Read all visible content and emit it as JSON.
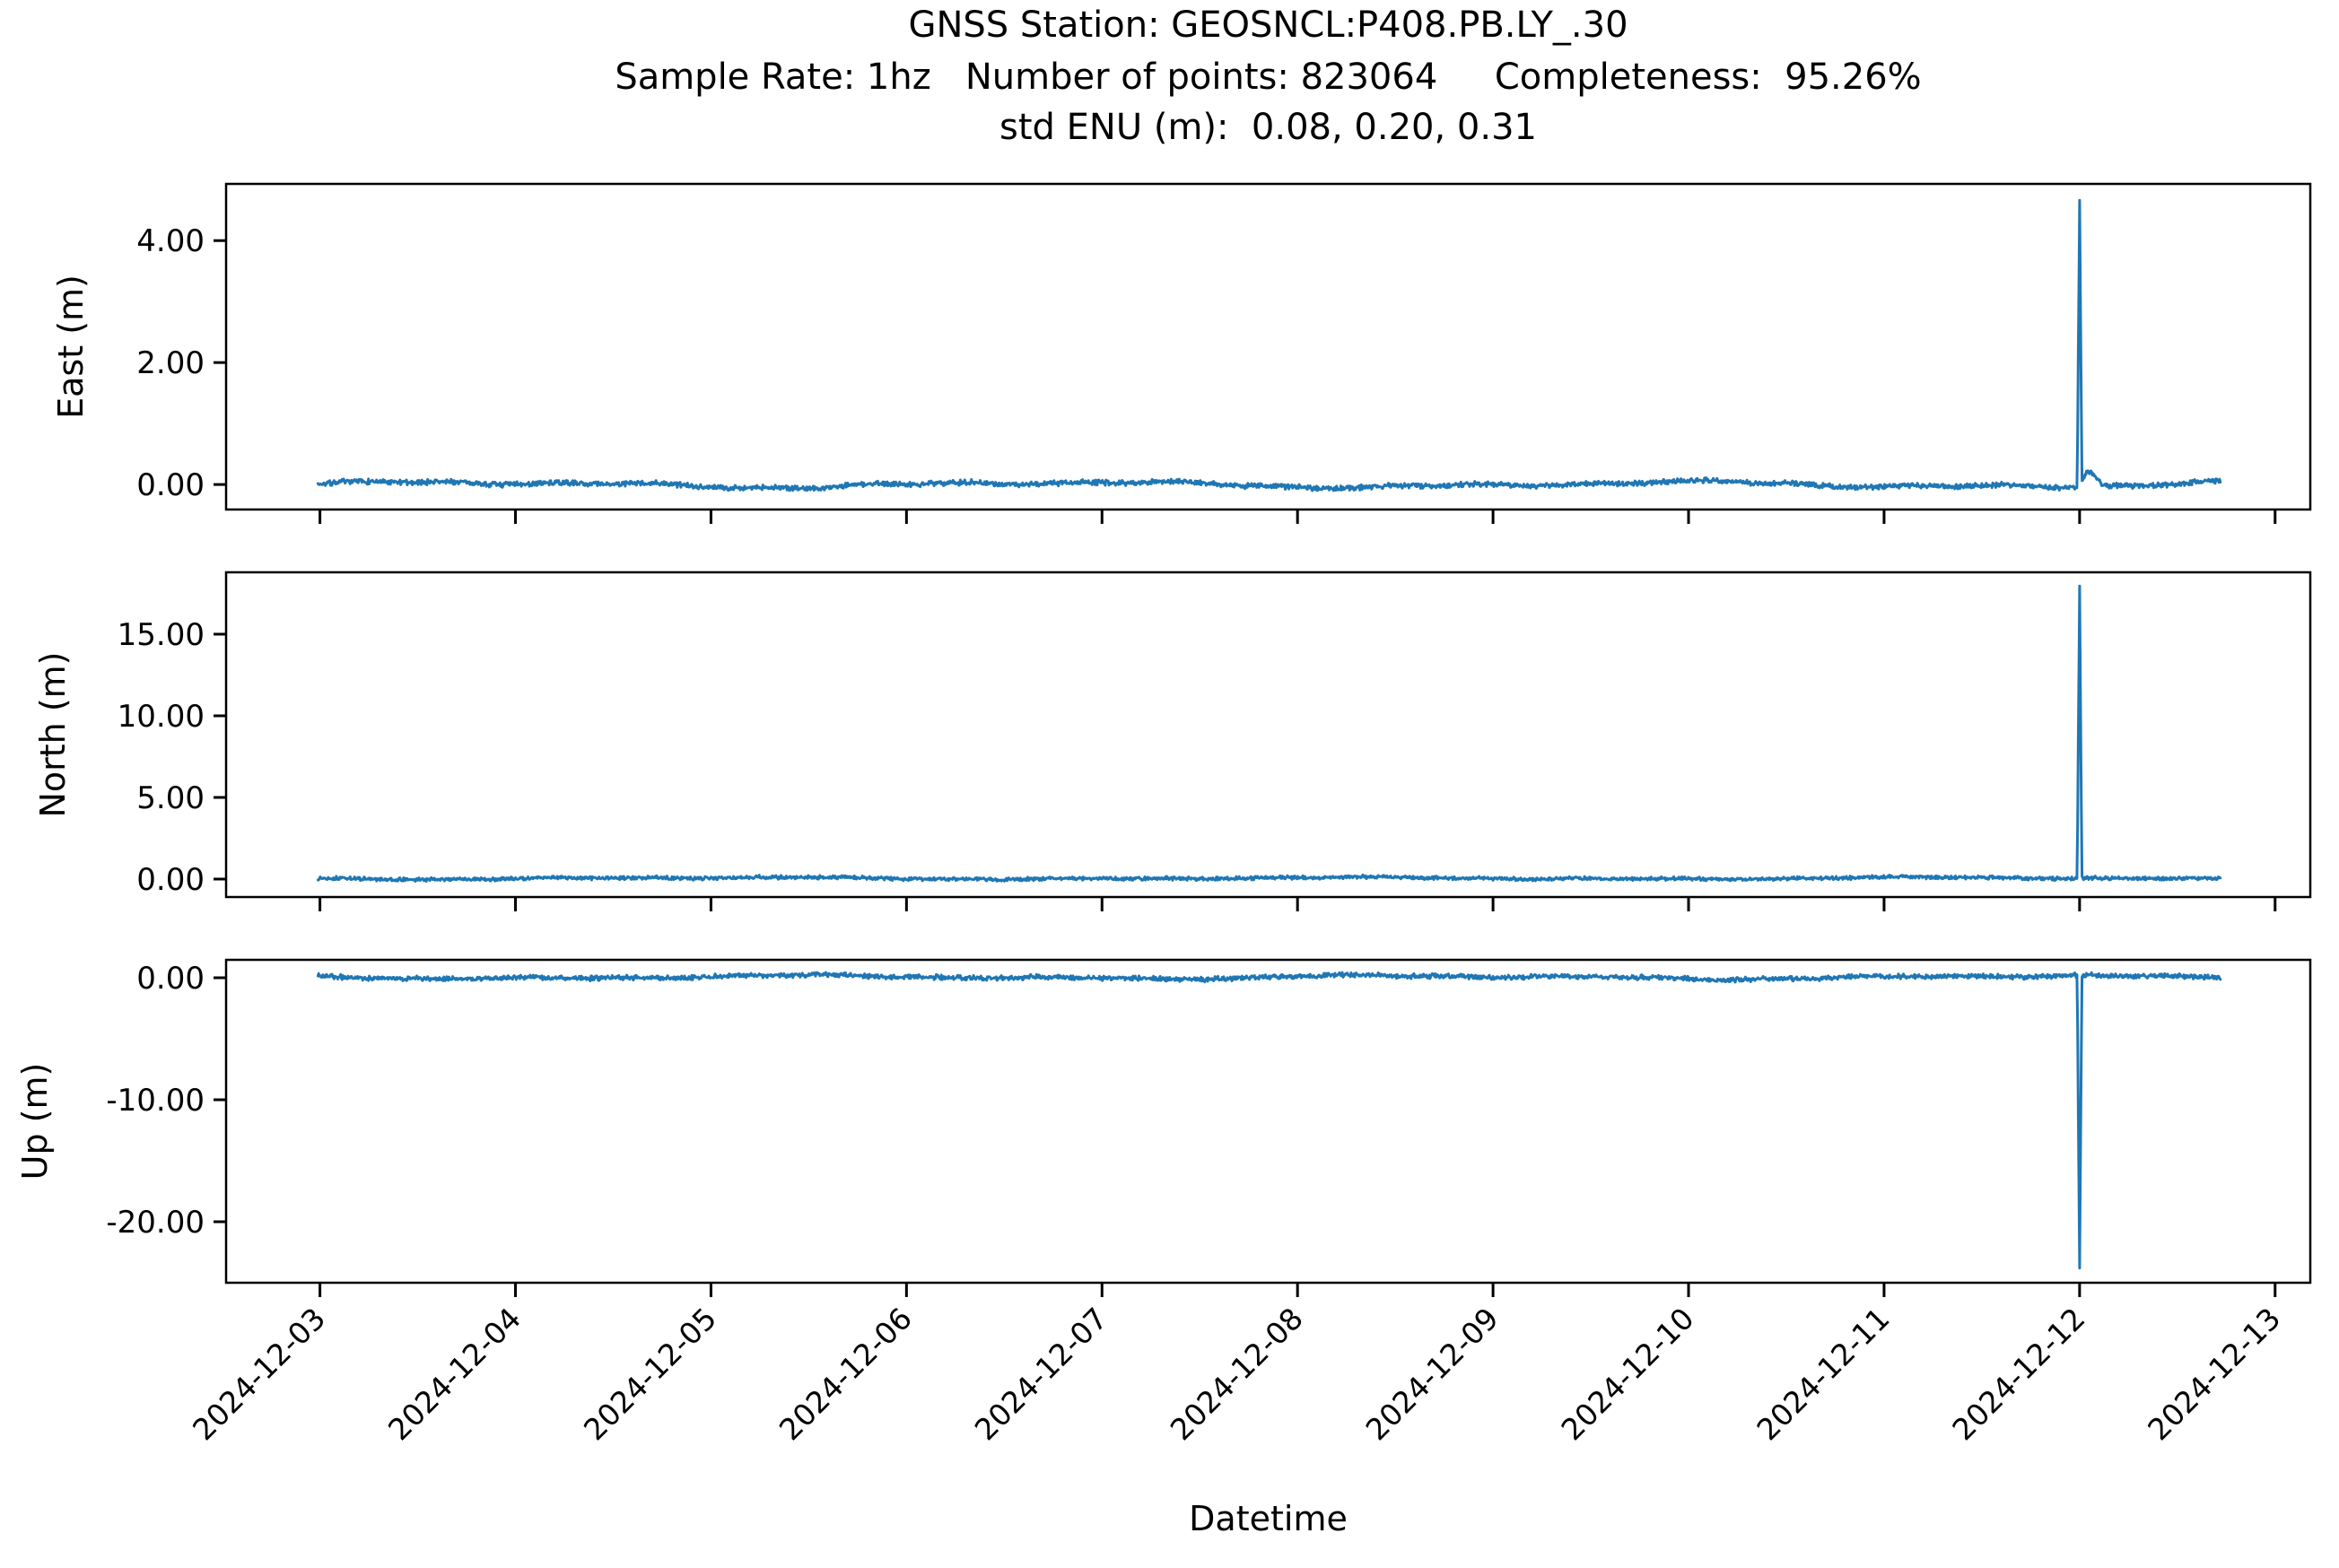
{
  "title": {
    "line1": "GNSS Station: GEOSNCL:P408.PB.LY_.30",
    "line2": "Sample Rate: 1hz   Number of points: 823064     Completeness:  95.26%",
    "line3": "std ENU (m):  0.08, 0.20, 0.31"
  },
  "chart_data": {
    "type": "line",
    "title": "GNSS Station: GEOSNCL:P408.PB.LY_.30",
    "subtitle": "Sample Rate: 1hz   Number of points: 823064     Completeness:  95.26%",
    "subtitle2": "std ENU (m):  0.08, 0.20, 0.31",
    "station": "GEOSNCL:P408.PB.LY_.30",
    "sample_rate": "1hz",
    "number_of_points": 823064,
    "completeness_percent": 95.26,
    "std_enu_m": {
      "east": 0.08,
      "north": 0.2,
      "up": 0.31
    },
    "xlabel": "Datetime",
    "line_color": "#1f77b4",
    "axis_color": "#000000",
    "background_color": "#ffffff",
    "x_axis": {
      "xlim_days": [
        -0.48,
        10.18
      ],
      "tick_rotation_deg": 45,
      "ticks": [
        {
          "day": 0,
          "label": "2024-12-03"
        },
        {
          "day": 1,
          "label": "2024-12-04"
        },
        {
          "day": 2,
          "label": "2024-12-05"
        },
        {
          "day": 3,
          "label": "2024-12-06"
        },
        {
          "day": 4,
          "label": "2024-12-07"
        },
        {
          "day": 5,
          "label": "2024-12-08"
        },
        {
          "day": 6,
          "label": "2024-12-09"
        },
        {
          "day": 7,
          "label": "2024-12-10"
        },
        {
          "day": 8,
          "label": "2024-12-11"
        },
        {
          "day": 9,
          "label": "2024-12-12"
        },
        {
          "day": 10,
          "label": "2024-12-13"
        }
      ]
    },
    "data_span_days": {
      "start": -0.01,
      "end": 9.72
    },
    "spike_day": 9.0,
    "subplots": [
      {
        "id": "east",
        "ylabel": "East (m)",
        "ylim": [
          -0.41,
          4.93
        ],
        "yticks": [
          {
            "value": 0,
            "label": "0.00"
          },
          {
            "value": 2,
            "label": "2.00"
          },
          {
            "value": 4,
            "label": "4.00"
          }
        ],
        "baseline": 0.0,
        "noise_amplitude": 0.05,
        "wander_amplitude": 0.038,
        "spike_value": 4.7,
        "post_spike_bump": {
          "amplitude": 0.24,
          "offset_days": 0.05,
          "sigma_days": 0.045
        },
        "seed": 7
      },
      {
        "id": "north",
        "ylabel": "North (m)",
        "ylim": [
          -1.1,
          18.79
        ],
        "yticks": [
          {
            "value": 0,
            "label": "0.00"
          },
          {
            "value": 5,
            "label": "5.00"
          },
          {
            "value": 10,
            "label": "10.00"
          },
          {
            "value": 15,
            "label": "15.00"
          }
        ],
        "baseline": 0.05,
        "noise_amplitude": 0.13,
        "wander_amplitude": 0.05,
        "spike_value": 17.9,
        "post_spike_bump": null,
        "seed": 13
      },
      {
        "id": "up",
        "ylabel": "Up (m)",
        "ylim": [
          -25.0,
          1.47
        ],
        "yticks": [
          {
            "value": 0,
            "label": "0.00"
          },
          {
            "value": -10,
            "label": "-10.00"
          },
          {
            "value": -20,
            "label": "-20.00"
          }
        ],
        "baseline": 0.05,
        "noise_amplitude": 0.23,
        "wander_amplitude": 0.12,
        "spike_value": -24.0,
        "post_spike_bump": null,
        "seed": 21
      }
    ]
  }
}
